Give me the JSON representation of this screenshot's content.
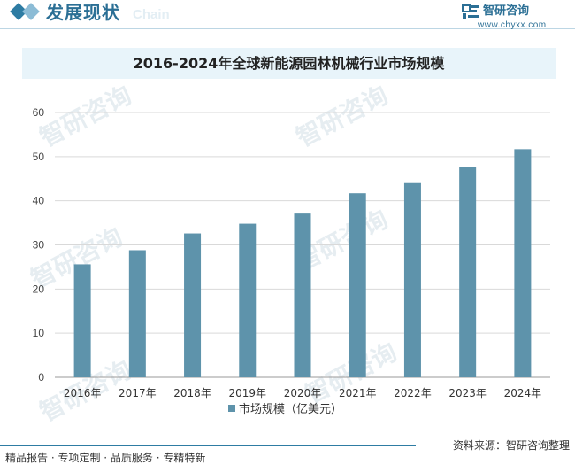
{
  "header": {
    "title": "发展现状",
    "ghost_text": "Chain"
  },
  "logo": {
    "name": "智研咨询",
    "url": "www.chyxx.com"
  },
  "watermark_text": "智研咨询",
  "chart_data": {
    "type": "bar",
    "title": "2016-2024年全球新能源园林机械行业市场规模",
    "categories": [
      "2016年",
      "2017年",
      "2018年",
      "2019年",
      "2020年",
      "2021年",
      "2022年",
      "2023年",
      "2024年"
    ],
    "series": [
      {
        "name": "市场规模（亿美元）",
        "values": [
          25.6,
          28.8,
          32.6,
          34.8,
          37.1,
          41.7,
          44.0,
          47.6,
          51.7
        ],
        "color": "#5e93ab"
      }
    ],
    "ylim": [
      0,
      60
    ],
    "yticks": [
      0,
      10,
      20,
      30,
      40,
      50,
      60
    ],
    "grid": true,
    "legend_position": "bottom"
  },
  "footer": {
    "left": "精品报告 · 专项定制 · 品质服务 · 专精特新",
    "right": "资料来源：智研咨询整理"
  },
  "colors": {
    "accent": "#2b6f95",
    "bar": "#5e93ab",
    "title_band": "#e8f4fa"
  }
}
